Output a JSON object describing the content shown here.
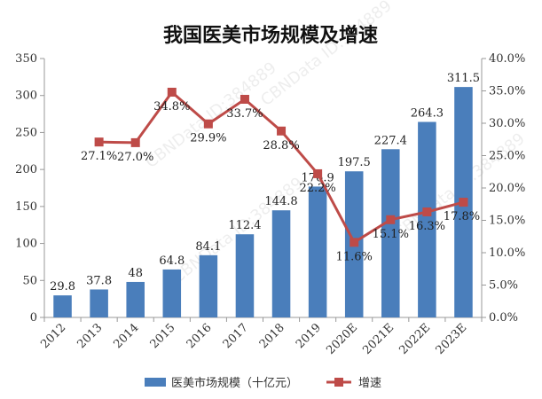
{
  "chart_data": {
    "type": "bar+line",
    "title": "我国医美市场规模及增速",
    "categories": [
      "2012",
      "2013",
      "2014",
      "2015",
      "2016",
      "2017",
      "2018",
      "2019",
      "2020E",
      "2021E",
      "2022E",
      "2023E"
    ],
    "series": [
      {
        "name": "医美市场规模（十亿元）",
        "type": "bar",
        "axis": "left",
        "color": "#4a7ebb",
        "values": [
          29.8,
          37.8,
          48,
          64.8,
          84.1,
          112.4,
          144.8,
          176.9,
          197.5,
          227.4,
          264.3,
          311.5
        ],
        "labels": [
          "29.8",
          "37.8",
          "48",
          "64.8",
          "84.1",
          "112.4",
          "144.8",
          "176.9",
          "197.5",
          "227.4",
          "264.3",
          "311.5"
        ]
      },
      {
        "name": "增速",
        "type": "line",
        "axis": "right",
        "color": "#be4b48",
        "values": [
          null,
          27.1,
          27.0,
          34.8,
          29.9,
          33.7,
          28.8,
          22.2,
          11.6,
          15.1,
          16.3,
          17.8
        ],
        "labels": [
          "",
          "27.1%",
          "27.0%",
          "34.8%",
          "29.9%",
          "33.7%",
          "28.8%",
          "22.2%",
          "11.6%",
          "15.1%",
          "16.3%",
          "17.8%"
        ]
      }
    ],
    "y_left": {
      "range": [
        0,
        350
      ],
      "ticks": [
        "0",
        "50",
        "100",
        "150",
        "200",
        "250",
        "300",
        "350"
      ]
    },
    "y_right": {
      "range": [
        0,
        40
      ],
      "ticks": [
        "0.0%",
        "5.0%",
        "10.0%",
        "15.0%",
        "20.0%",
        "25.0%",
        "30.0%",
        "35.0%",
        "40.0%"
      ]
    },
    "grid": false,
    "legend_position": "bottom",
    "watermark": "CBNData ID:384889"
  }
}
